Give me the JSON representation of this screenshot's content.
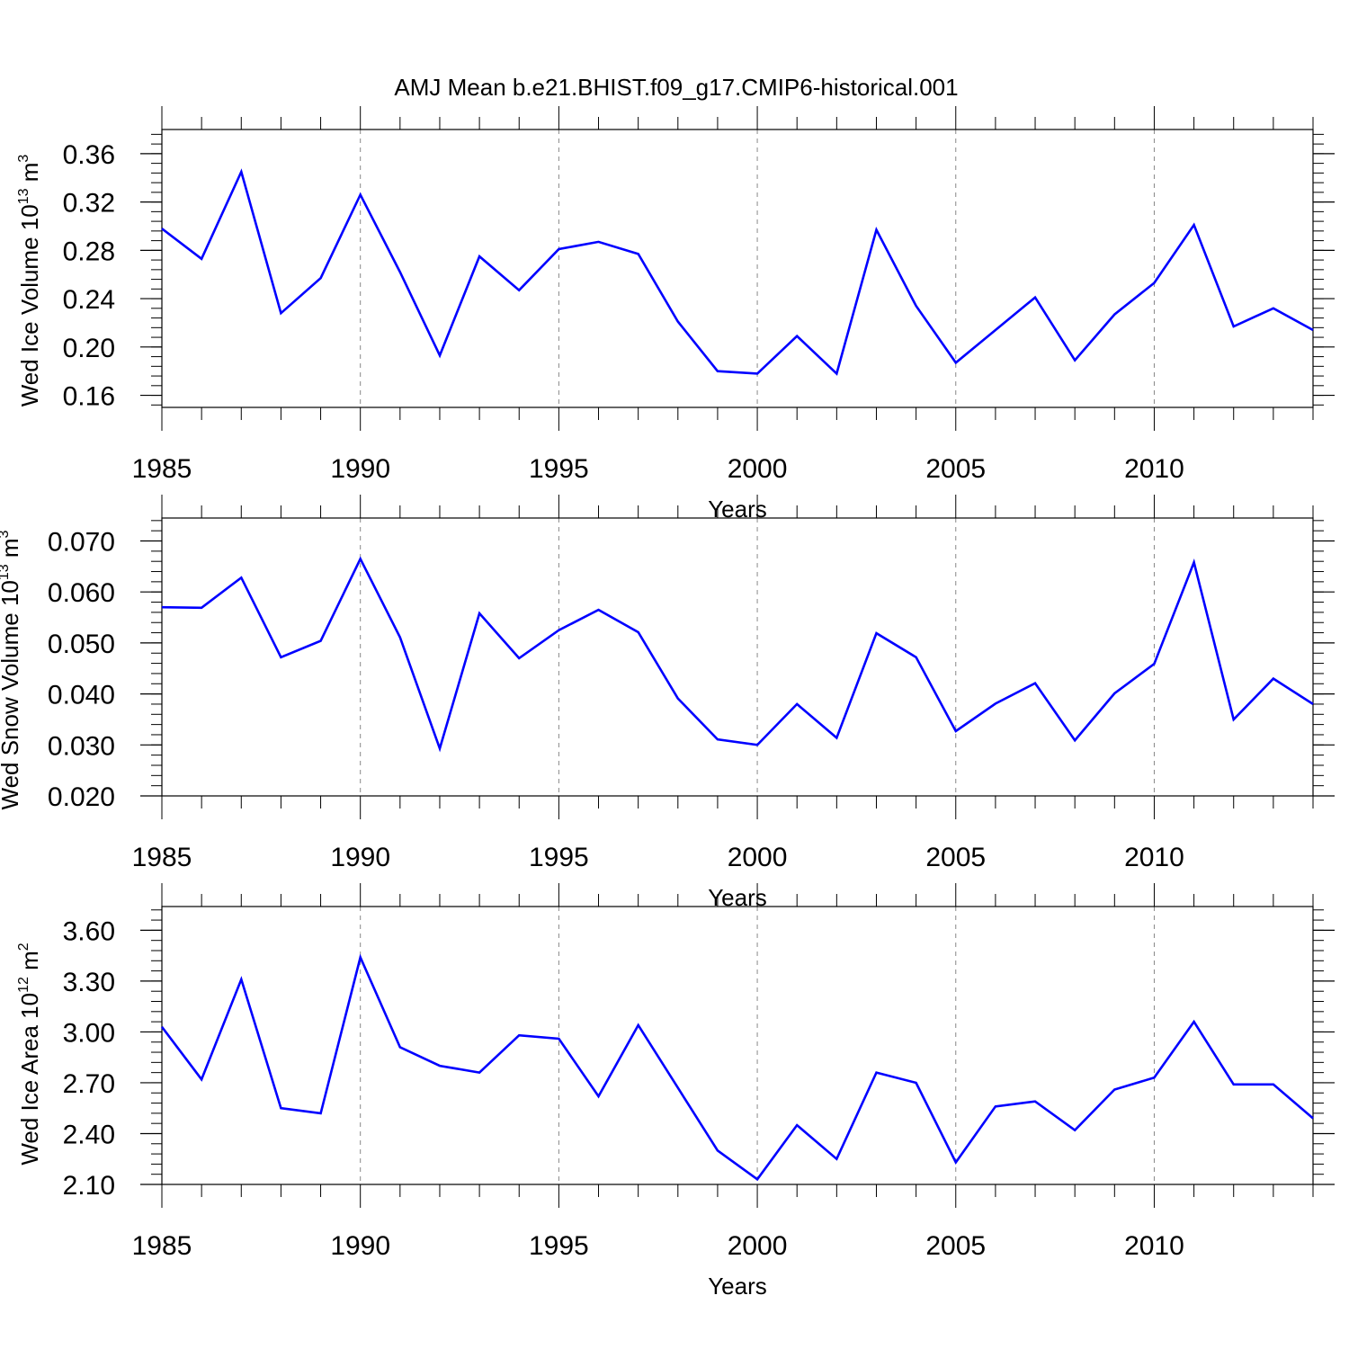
{
  "chart_data": {
    "type": "line",
    "title": "AMJ Mean b.e21.BHIST.f09_g17.CMIP6-historical.001",
    "line_color": "#0000ff",
    "grid_color": "#888888",
    "x_years": [
      1985,
      1986,
      1987,
      1988,
      1989,
      1990,
      1991,
      1992,
      1993,
      1994,
      1995,
      1996,
      1997,
      1998,
      1999,
      2000,
      2001,
      2002,
      2003,
      2004,
      2005,
      2006,
      2007,
      2008,
      2009,
      2010,
      2011,
      2012,
      2013,
      2014
    ],
    "xlim": [
      1985,
      2014
    ],
    "x_tick_values": [
      1985,
      1990,
      1995,
      2000,
      2005,
      2010
    ],
    "x_tick_labels": [
      "1985",
      "1990",
      "1995",
      "2000",
      "2005",
      "2010"
    ],
    "xlabel": "Years",
    "vertical_grid": "dashed at 1990, 1995, 2000, 2005, 2010",
    "panels": [
      {
        "ylabel_main": "Wed Ice Volume 10",
        "ylabel_exp": "13",
        "ylabel_unit": " m",
        "ylabel_unit_exp": "3",
        "ylim": [
          0.15,
          0.38
        ],
        "y_tick_values": [
          0.16,
          0.2,
          0.24,
          0.28,
          0.32,
          0.36
        ],
        "y_tick_labels": [
          "0.16",
          "0.20",
          "0.24",
          "0.28",
          "0.32",
          "0.36"
        ],
        "values": [
          0.298,
          0.273,
          0.345,
          0.228,
          0.257,
          0.326,
          0.262,
          0.193,
          0.275,
          0.247,
          0.281,
          0.287,
          0.277,
          0.221,
          0.18,
          0.178,
          0.209,
          0.178,
          0.297,
          0.234,
          0.187,
          0.214,
          0.241,
          0.189,
          0.227,
          0.253,
          0.301,
          0.217,
          0.232,
          0.214
        ]
      },
      {
        "ylabel_main": "Wed Snow Volume 10",
        "ylabel_exp": "13",
        "ylabel_unit": " m",
        "ylabel_unit_exp": "3",
        "ylim": [
          0.02,
          0.0745
        ],
        "y_tick_values": [
          0.02,
          0.03,
          0.04,
          0.05,
          0.06,
          0.07
        ],
        "y_tick_labels": [
          "0.020",
          "0.030",
          "0.040",
          "0.050",
          "0.060",
          "0.070"
        ],
        "values": [
          0.057,
          0.0569,
          0.0628,
          0.0472,
          0.0504,
          0.0665,
          0.0511,
          0.0293,
          0.0558,
          0.047,
          0.0525,
          0.0565,
          0.0521,
          0.0391,
          0.0311,
          0.03,
          0.038,
          0.0314,
          0.0519,
          0.0472,
          0.0327,
          0.0381,
          0.0421,
          0.0309,
          0.0401,
          0.0459,
          0.0658,
          0.035,
          0.043,
          0.038
        ]
      },
      {
        "ylabel_main": "Wed Ice Area 10",
        "ylabel_exp": "12",
        "ylabel_unit": " m",
        "ylabel_unit_exp": "2",
        "ylim": [
          2.1,
          3.74
        ],
        "y_tick_values": [
          2.1,
          2.4,
          2.7,
          3.0,
          3.3,
          3.6
        ],
        "y_tick_labels": [
          "2.10",
          "2.40",
          "2.70",
          "3.00",
          "3.30",
          "3.60"
        ],
        "values": [
          3.03,
          2.72,
          3.31,
          2.55,
          2.52,
          3.44,
          2.91,
          2.8,
          2.76,
          2.98,
          2.96,
          2.62,
          3.04,
          2.67,
          2.3,
          2.13,
          2.45,
          2.25,
          2.76,
          2.7,
          2.23,
          2.56,
          2.59,
          2.42,
          2.66,
          2.73,
          3.06,
          2.69,
          2.69,
          2.49
        ]
      }
    ]
  }
}
